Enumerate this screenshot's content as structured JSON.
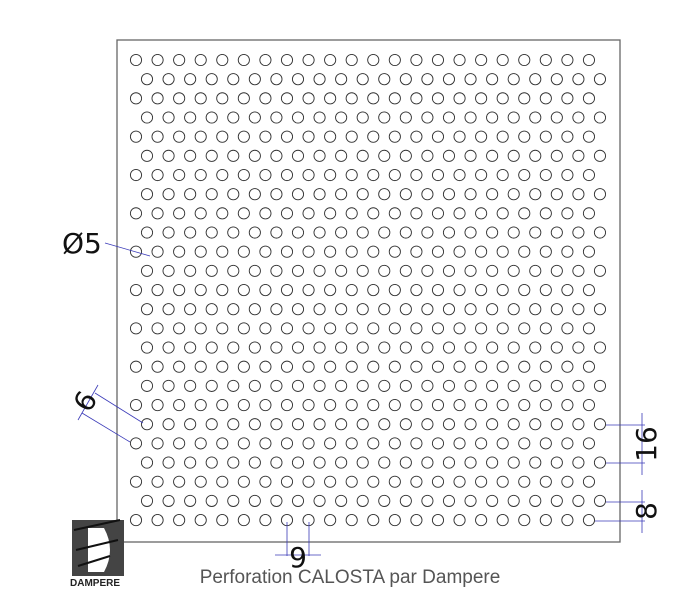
{
  "diagram": {
    "caption": "Perforation CALOSTA par Dampere",
    "hole_diameter_label": "Ø5",
    "diagonal_pitch_label": "9",
    "horizontal_pitch_label": "9",
    "vertical_pitch_label": "16",
    "row_offset_label": "8",
    "rows": 25,
    "holes_per_row": 22,
    "dimension_color": "#3a3ab8",
    "outline_color": "#333333"
  },
  "logo": {
    "text": "DAMPERE"
  }
}
